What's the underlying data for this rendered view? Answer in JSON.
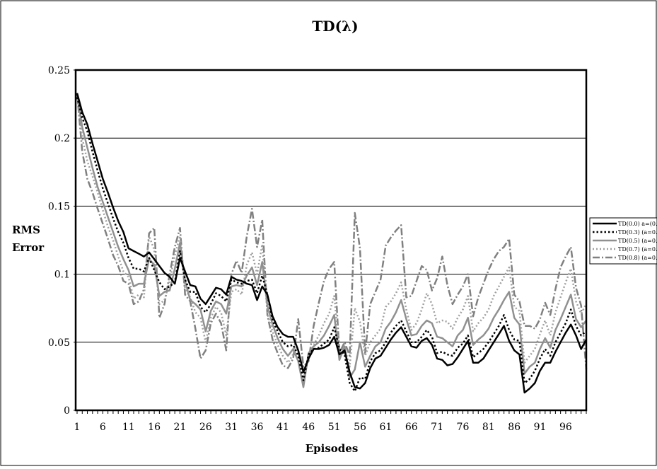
{
  "chart_data": {
    "type": "line",
    "title": "TD(λ)",
    "xlabel": "Episodes",
    "ylabel_lines": [
      "RMS",
      "Error"
    ],
    "ylim": [
      0,
      0.25
    ],
    "yticks": [
      0,
      0.05,
      0.1,
      0.15,
      0.2,
      0.25
    ],
    "ytick_labels": [
      "0",
      "0.05",
      "0.1",
      "0.15",
      "0.2",
      "0.25"
    ],
    "x_range": [
      1,
      100
    ],
    "xticks": [
      1,
      6,
      11,
      16,
      21,
      26,
      31,
      36,
      41,
      46,
      51,
      56,
      61,
      66,
      71,
      76,
      81,
      86,
      91,
      96
    ],
    "grid": "horizontal",
    "legend_position": "right",
    "series": [
      {
        "name": "TD(0.0) a=(0.1",
        "style": "solid-thick",
        "color": "#000000",
        "values": [
          0.233,
          0.219,
          0.21,
          0.196,
          0.183,
          0.17,
          0.16,
          0.149,
          0.139,
          0.131,
          0.119,
          0.117,
          0.115,
          0.113,
          0.116,
          0.111,
          0.106,
          0.101,
          0.098,
          0.093,
          0.112,
          0.102,
          0.092,
          0.091,
          0.082,
          0.078,
          0.084,
          0.09,
          0.089,
          0.085,
          0.098,
          0.096,
          0.095,
          0.093,
          0.092,
          0.081,
          0.091,
          0.085,
          0.069,
          0.061,
          0.056,
          0.054,
          0.054,
          0.044,
          0.028,
          0.038,
          0.045,
          0.045,
          0.046,
          0.048,
          0.054,
          0.041,
          0.044,
          0.028,
          0.017,
          0.016,
          0.02,
          0.031,
          0.038,
          0.04,
          0.046,
          0.052,
          0.057,
          0.061,
          0.054,
          0.047,
          0.046,
          0.051,
          0.053,
          0.048,
          0.038,
          0.037,
          0.033,
          0.034,
          0.039,
          0.045,
          0.051,
          0.035,
          0.035,
          0.038,
          0.044,
          0.05,
          0.056,
          0.062,
          0.051,
          0.044,
          0.041,
          0.013,
          0.016,
          0.02,
          0.029,
          0.035,
          0.035,
          0.043,
          0.05,
          0.057,
          0.063,
          0.055,
          0.045,
          0.052
        ]
      },
      {
        "name": "TD(0.3) (a=0.1",
        "style": "dotted-thick",
        "color": "#000000",
        "values": [
          0.23,
          0.215,
          0.205,
          0.19,
          0.176,
          0.163,
          0.152,
          0.141,
          0.131,
          0.123,
          0.112,
          0.104,
          0.104,
          0.102,
          0.112,
          0.103,
          0.094,
          0.089,
          0.091,
          0.094,
          0.117,
          0.096,
          0.087,
          0.087,
          0.076,
          0.072,
          0.078,
          0.086,
          0.084,
          0.08,
          0.096,
          0.094,
          0.093,
          0.095,
          0.096,
          0.086,
          0.099,
          0.085,
          0.066,
          0.058,
          0.05,
          0.047,
          0.048,
          0.04,
          0.022,
          0.041,
          0.045,
          0.046,
          0.049,
          0.052,
          0.061,
          0.045,
          0.041,
          0.02,
          0.014,
          0.024,
          0.023,
          0.036,
          0.042,
          0.044,
          0.05,
          0.057,
          0.062,
          0.066,
          0.058,
          0.05,
          0.05,
          0.054,
          0.059,
          0.054,
          0.042,
          0.043,
          0.041,
          0.04,
          0.046,
          0.049,
          0.055,
          0.039,
          0.042,
          0.045,
          0.05,
          0.056,
          0.062,
          0.07,
          0.059,
          0.052,
          0.051,
          0.02,
          0.023,
          0.029,
          0.038,
          0.045,
          0.04,
          0.05,
          0.057,
          0.064,
          0.074,
          0.062,
          0.055,
          0.058
        ]
      },
      {
        "name": "TD(0.5) (a=0.1",
        "style": "solid-gray",
        "color": "#909090",
        "values": [
          0.233,
          0.208,
          0.193,
          0.178,
          0.164,
          0.153,
          0.142,
          0.131,
          0.12,
          0.111,
          0.103,
          0.091,
          0.093,
          0.093,
          0.111,
          0.107,
          0.084,
          0.087,
          0.088,
          0.104,
          0.123,
          0.095,
          0.081,
          0.078,
          0.074,
          0.058,
          0.073,
          0.08,
          0.078,
          0.071,
          0.091,
          0.092,
          0.091,
          0.099,
          0.105,
          0.092,
          0.109,
          0.077,
          0.063,
          0.053,
          0.045,
          0.04,
          0.045,
          0.036,
          0.017,
          0.042,
          0.047,
          0.05,
          0.055,
          0.062,
          0.07,
          0.037,
          0.047,
          0.024,
          0.03,
          0.05,
          0.032,
          0.04,
          0.047,
          0.05,
          0.06,
          0.065,
          0.072,
          0.081,
          0.067,
          0.055,
          0.056,
          0.062,
          0.066,
          0.064,
          0.054,
          0.053,
          0.05,
          0.047,
          0.055,
          0.059,
          0.068,
          0.048,
          0.052,
          0.055,
          0.06,
          0.068,
          0.074,
          0.081,
          0.087,
          0.068,
          0.063,
          0.027,
          0.032,
          0.035,
          0.045,
          0.053,
          0.046,
          0.059,
          0.067,
          0.076,
          0.085,
          0.067,
          0.061,
          0.066
        ]
      },
      {
        "name": "TD(0.7) (a=0.1",
        "style": "dotted-gray",
        "color": "#a0a0a0",
        "values": [
          0.233,
          0.2,
          0.183,
          0.172,
          0.16,
          0.147,
          0.135,
          0.125,
          0.113,
          0.102,
          0.098,
          0.082,
          0.085,
          0.083,
          0.128,
          0.118,
          0.078,
          0.081,
          0.095,
          0.114,
          0.128,
          0.089,
          0.083,
          0.072,
          0.068,
          0.05,
          0.068,
          0.076,
          0.072,
          0.055,
          0.087,
          0.089,
          0.085,
          0.107,
          0.116,
          0.1,
          0.122,
          0.071,
          0.058,
          0.048,
          0.04,
          0.035,
          0.041,
          0.045,
          0.022,
          0.04,
          0.048,
          0.055,
          0.064,
          0.071,
          0.084,
          0.043,
          0.046,
          0.032,
          0.075,
          0.065,
          0.04,
          0.05,
          0.055,
          0.06,
          0.076,
          0.08,
          0.086,
          0.094,
          0.074,
          0.059,
          0.064,
          0.074,
          0.086,
          0.078,
          0.064,
          0.066,
          0.065,
          0.06,
          0.068,
          0.074,
          0.084,
          0.058,
          0.064,
          0.068,
          0.074,
          0.084,
          0.091,
          0.098,
          0.105,
          0.076,
          0.073,
          0.035,
          0.04,
          0.045,
          0.056,
          0.066,
          0.055,
          0.072,
          0.083,
          0.094,
          0.104,
          0.08,
          0.071,
          0.078
        ]
      },
      {
        "name": "TD(0.8) (a=0.1",
        "style": "dashdot-gray",
        "color": "#808080",
        "values": [
          0.233,
          0.19,
          0.17,
          0.16,
          0.148,
          0.137,
          0.126,
          0.114,
          0.106,
          0.095,
          0.093,
          0.078,
          0.08,
          0.089,
          0.13,
          0.134,
          0.068,
          0.078,
          0.1,
          0.12,
          0.134,
          0.085,
          0.08,
          0.06,
          0.038,
          0.044,
          0.064,
          0.071,
          0.064,
          0.044,
          0.1,
          0.11,
          0.101,
          0.128,
          0.148,
          0.12,
          0.14,
          0.07,
          0.052,
          0.042,
          0.033,
          0.031,
          0.038,
          0.067,
          0.032,
          0.036,
          0.062,
          0.079,
          0.095,
          0.104,
          0.109,
          0.042,
          0.05,
          0.04,
          0.145,
          0.119,
          0.042,
          0.078,
          0.087,
          0.096,
          0.121,
          0.127,
          0.132,
          0.136,
          0.083,
          0.084,
          0.095,
          0.106,
          0.103,
          0.088,
          0.097,
          0.113,
          0.092,
          0.078,
          0.085,
          0.091,
          0.1,
          0.069,
          0.083,
          0.093,
          0.103,
          0.111,
          0.117,
          0.12,
          0.126,
          0.085,
          0.08,
          0.062,
          0.062,
          0.06,
          0.067,
          0.079,
          0.07,
          0.089,
          0.105,
          0.113,
          0.12,
          0.09,
          0.077,
          0.03
        ]
      }
    ]
  }
}
